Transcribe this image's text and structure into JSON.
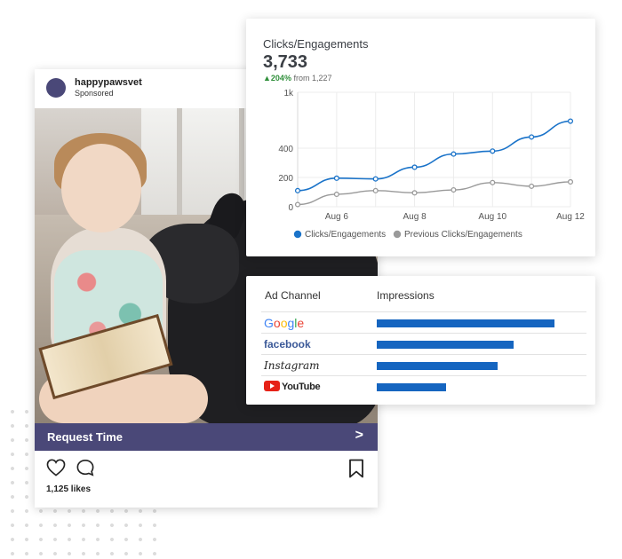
{
  "post": {
    "username": "happypawsvet",
    "sponsored": "Sponsored",
    "cta_label": "Request Time",
    "likes": "1,125 likes",
    "icons": [
      "heart-icon",
      "comment-icon",
      "bookmark-icon",
      "chevron-right-icon"
    ]
  },
  "metrics": {
    "title": "Clicks/Engagements",
    "total": "3,733",
    "change_pct": "204%",
    "change_from": "from 1,227"
  },
  "chart_data": {
    "type": "line",
    "y_ticks": [
      "0",
      "200",
      "400",
      "1k"
    ],
    "x_ticks": [
      "Aug 6",
      "Aug 8",
      "Aug 10",
      "Aug 12"
    ],
    "series": [
      {
        "name": "Clicks/Engagements",
        "color": "#1a73c9",
        "values": [
          110,
          195,
          190,
          270,
          360,
          380,
          520,
          690
        ]
      },
      {
        "name": "Previous Clicks/Engagements",
        "color": "#9a9a9a",
        "values": [
          15,
          85,
          110,
          95,
          115,
          165,
          140,
          170
        ]
      }
    ]
  },
  "ads": {
    "col_channel": "Ad Channel",
    "col_impressions": "Impressions",
    "rows": [
      {
        "channel": "Google",
        "impressions_fraction": 1.0
      },
      {
        "channel": "facebook",
        "impressions_fraction": 0.77
      },
      {
        "channel": "Instagram",
        "impressions_fraction": 0.68
      },
      {
        "channel": "YouTube",
        "impressions_fraction": 0.39
      }
    ]
  }
}
